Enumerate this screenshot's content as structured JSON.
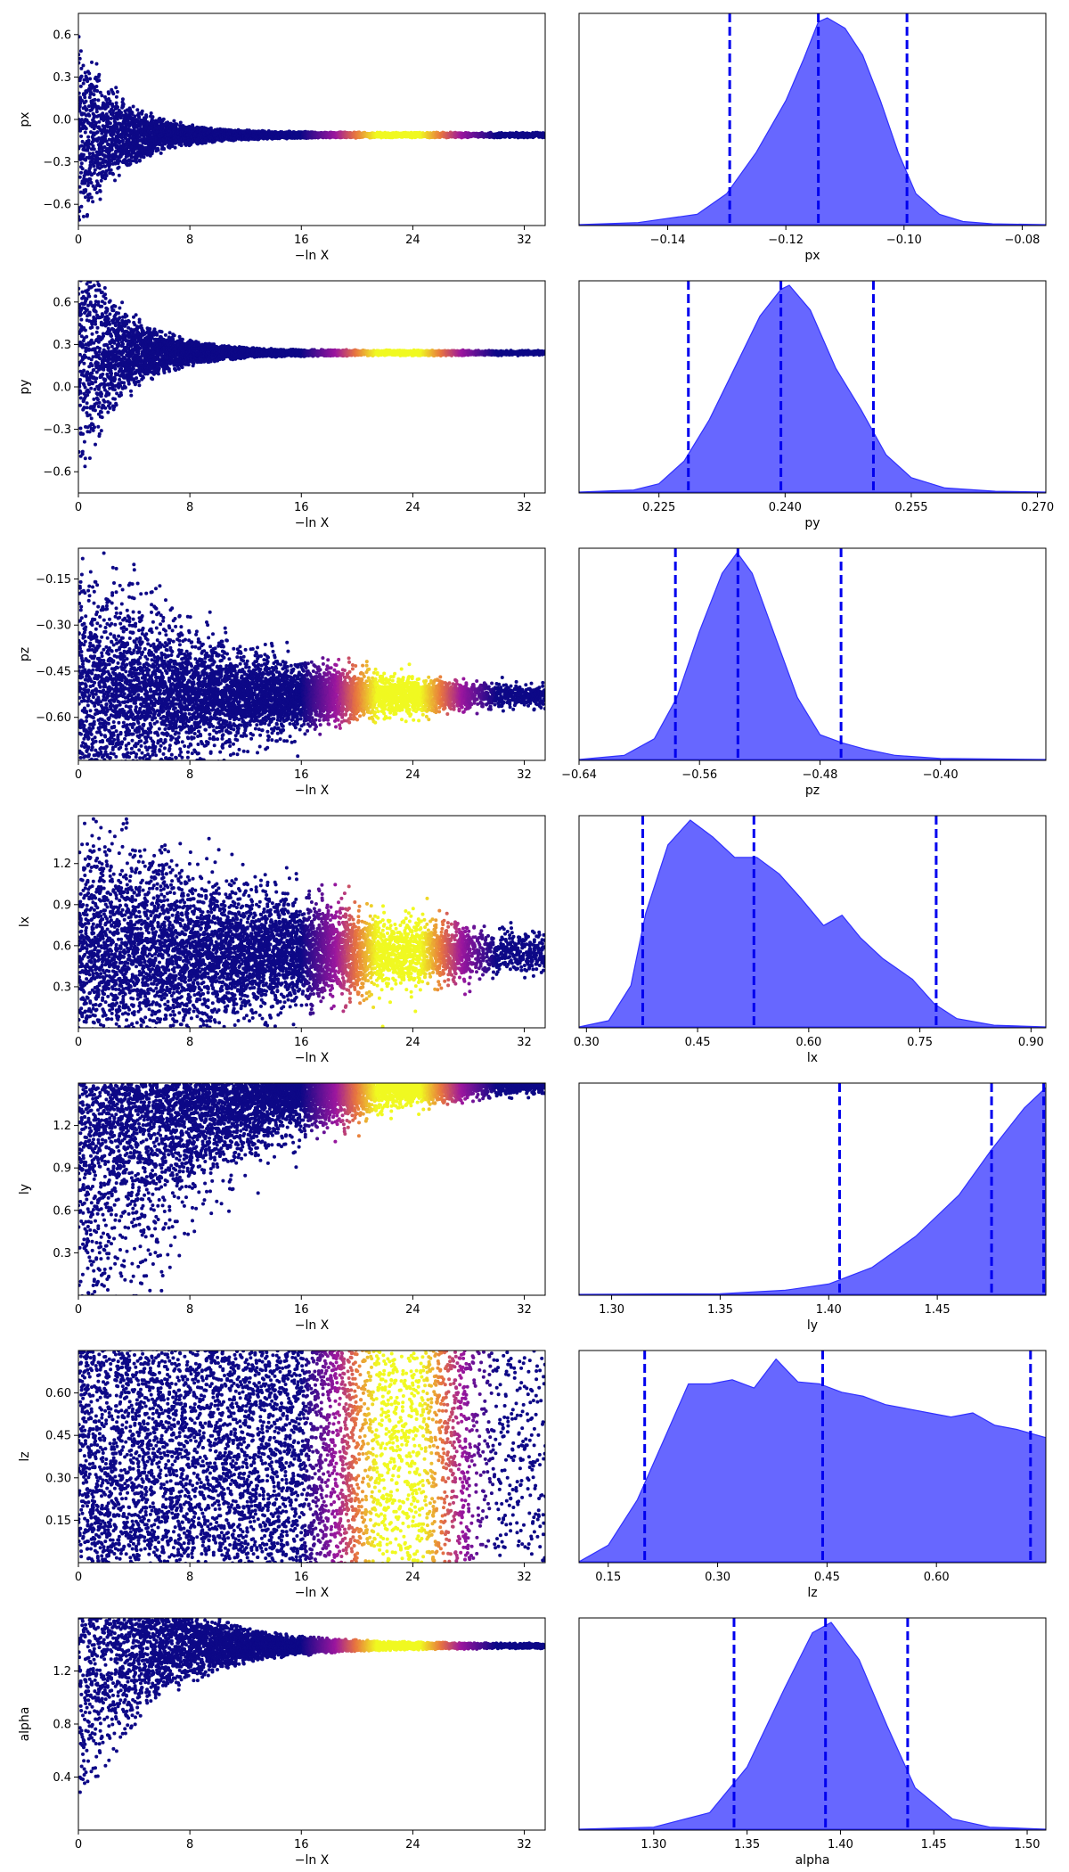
{
  "colors": {
    "trace_low": "#0d0887",
    "trace_mid": "#9c179e",
    "trace_high": "#f0f921",
    "posterior_fill": "#5a5aff",
    "posterior_edge": "#3030ff",
    "quantile_line": "#0000ee",
    "axis": "#000000"
  },
  "chart_data": [
    {
      "type": "scatter",
      "param": "px",
      "ylabel": "px",
      "xlabel": "−ln X",
      "xlim": [
        0,
        33.5
      ],
      "ylim": [
        -0.75,
        0.75
      ],
      "xticks": [
        0,
        8,
        16,
        24,
        32
      ],
      "xtick_labels": [
        "0",
        "8",
        "16",
        "24",
        "32"
      ],
      "yticks": [
        0.6,
        0.3,
        0.0,
        -0.3,
        -0.6
      ],
      "ytick_labels": [
        "0.6",
        "0.3",
        "0.0",
        "−0.3",
        "−0.6"
      ],
      "center": -0.11,
      "spread_at_zero": 0.75,
      "decay_rate": 0.32,
      "peak_lnx": 23,
      "points_per_bin": 16
    },
    {
      "type": "area",
      "param": "px",
      "xlabel": "px",
      "xlim": [
        -0.155,
        -0.076
      ],
      "xticks": [
        -0.14,
        -0.12,
        -0.1,
        -0.08
      ],
      "xtick_labels": [
        "−0.14",
        "−0.12",
        "−0.10",
        "−0.08"
      ],
      "quantiles": [
        -0.1295,
        -0.1145,
        -0.0995
      ],
      "density": [
        [
          -0.155,
          0
        ],
        [
          -0.145,
          0.01
        ],
        [
          -0.135,
          0.05
        ],
        [
          -0.13,
          0.15
        ],
        [
          -0.125,
          0.35
        ],
        [
          -0.12,
          0.6
        ],
        [
          -0.117,
          0.8
        ],
        [
          -0.1145,
          0.98
        ],
        [
          -0.113,
          1.0
        ],
        [
          -0.11,
          0.95
        ],
        [
          -0.107,
          0.82
        ],
        [
          -0.104,
          0.6
        ],
        [
          -0.101,
          0.35
        ],
        [
          -0.098,
          0.15
        ],
        [
          -0.094,
          0.05
        ],
        [
          -0.09,
          0.015
        ],
        [
          -0.085,
          0.004
        ],
        [
          -0.076,
          0
        ]
      ]
    },
    {
      "type": "scatter",
      "param": "py",
      "ylabel": "py",
      "xlabel": "−ln X",
      "xlim": [
        0,
        33.5
      ],
      "ylim": [
        -0.75,
        0.75
      ],
      "xticks": [
        0,
        8,
        16,
        24,
        32
      ],
      "xtick_labels": [
        "0",
        "8",
        "16",
        "24",
        "32"
      ],
      "yticks": [
        0.6,
        0.3,
        0.0,
        -0.3,
        -0.6
      ],
      "ytick_labels": [
        "0.6",
        "0.3",
        "0.0",
        "−0.3",
        "−0.6"
      ],
      "center": 0.24,
      "spread_at_zero": 1.0,
      "decay_rate": 0.32,
      "peak_lnx": 23,
      "points_per_bin": 16
    },
    {
      "type": "area",
      "param": "py",
      "xlabel": "py",
      "xlim": [
        0.2155,
        0.271
      ],
      "xticks": [
        0.225,
        0.24,
        0.255,
        0.27
      ],
      "xtick_labels": [
        "0.225",
        "0.240",
        "0.255",
        "0.270"
      ],
      "quantiles": [
        0.2285,
        0.2395,
        0.2505
      ],
      "density": [
        [
          0.2155,
          0
        ],
        [
          0.222,
          0.01
        ],
        [
          0.225,
          0.04
        ],
        [
          0.228,
          0.15
        ],
        [
          0.231,
          0.35
        ],
        [
          0.234,
          0.6
        ],
        [
          0.237,
          0.85
        ],
        [
          0.2395,
          0.98
        ],
        [
          0.2405,
          1.0
        ],
        [
          0.243,
          0.88
        ],
        [
          0.246,
          0.6
        ],
        [
          0.249,
          0.4
        ],
        [
          0.252,
          0.18
        ],
        [
          0.255,
          0.07
        ],
        [
          0.259,
          0.02
        ],
        [
          0.265,
          0.004
        ],
        [
          0.271,
          0
        ]
      ]
    },
    {
      "type": "scatter",
      "param": "pz",
      "ylabel": "pz",
      "xlabel": "−ln X",
      "xlim": [
        0,
        33.5
      ],
      "ylim": [
        -0.74,
        -0.05
      ],
      "xticks": [
        0,
        8,
        16,
        24,
        32
      ],
      "xtick_labels": [
        "0",
        "8",
        "16",
        "24",
        "32"
      ],
      "yticks": [
        -0.15,
        -0.3,
        -0.45,
        -0.6
      ],
      "ytick_labels": [
        "−0.15",
        "−0.30",
        "−0.45",
        "−0.60"
      ],
      "center": -0.53,
      "spread_at_zero": 0.45,
      "decay_rate": 0.1,
      "peak_lnx": 23,
      "points_per_bin": 20
    },
    {
      "type": "area",
      "param": "pz",
      "xlabel": "pz",
      "xlim": [
        -0.64,
        -0.33
      ],
      "xticks": [
        -0.64,
        -0.56,
        -0.48,
        -0.4
      ],
      "xtick_labels": [
        "−0.64",
        "−0.56",
        "−0.48",
        "−0.40"
      ],
      "quantiles": [
        -0.576,
        -0.5345,
        -0.466
      ],
      "density": [
        [
          -0.64,
          0
        ],
        [
          -0.61,
          0.02
        ],
        [
          -0.59,
          0.1
        ],
        [
          -0.575,
          0.3
        ],
        [
          -0.56,
          0.62
        ],
        [
          -0.545,
          0.9
        ],
        [
          -0.535,
          1.0
        ],
        [
          -0.525,
          0.9
        ],
        [
          -0.51,
          0.6
        ],
        [
          -0.495,
          0.3
        ],
        [
          -0.48,
          0.12
        ],
        [
          -0.465,
          0.08
        ],
        [
          -0.45,
          0.05
        ],
        [
          -0.43,
          0.02
        ],
        [
          -0.4,
          0.005
        ],
        [
          -0.33,
          0
        ]
      ]
    },
    {
      "type": "scatter",
      "param": "lx",
      "ylabel": "lx",
      "xlabel": "−ln X",
      "xlim": [
        0,
        33.5
      ],
      "ylim": [
        0.0,
        1.55
      ],
      "xticks": [
        0,
        8,
        16,
        24,
        32
      ],
      "xtick_labels": [
        "0",
        "8",
        "16",
        "24",
        "32"
      ],
      "yticks": [
        1.2,
        0.9,
        0.6,
        0.3
      ],
      "ytick_labels": [
        "1.2",
        "0.9",
        "0.6",
        "0.3"
      ],
      "center": 0.55,
      "spread_at_zero": 1.0,
      "decay_rate": 0.06,
      "peak_lnx": 23,
      "points_per_bin": 20
    },
    {
      "type": "area",
      "param": "lx",
      "xlabel": "lx",
      "xlim": [
        0.29,
        0.92
      ],
      "xticks": [
        0.3,
        0.45,
        0.6,
        0.75,
        0.9
      ],
      "xtick_labels": [
        "0.30",
        "0.45",
        "0.60",
        "0.75",
        "0.90"
      ],
      "quantiles": [
        0.376,
        0.526,
        0.772
      ],
      "density": [
        [
          0.29,
          0
        ],
        [
          0.33,
          0.03
        ],
        [
          0.36,
          0.2
        ],
        [
          0.38,
          0.55
        ],
        [
          0.41,
          0.88
        ],
        [
          0.44,
          1.0
        ],
        [
          0.47,
          0.92
        ],
        [
          0.5,
          0.82
        ],
        [
          0.53,
          0.82
        ],
        [
          0.56,
          0.74
        ],
        [
          0.59,
          0.62
        ],
        [
          0.62,
          0.49
        ],
        [
          0.645,
          0.54
        ],
        [
          0.67,
          0.43
        ],
        [
          0.7,
          0.33
        ],
        [
          0.74,
          0.23
        ],
        [
          0.77,
          0.11
        ],
        [
          0.8,
          0.04
        ],
        [
          0.85,
          0.008
        ],
        [
          0.92,
          0
        ]
      ]
    },
    {
      "type": "scatter",
      "param": "ly",
      "ylabel": "ly",
      "xlabel": "−ln X",
      "xlim": [
        0,
        33.5
      ],
      "ylim": [
        0.0,
        1.5
      ],
      "xticks": [
        0,
        8,
        16,
        24,
        32
      ],
      "xtick_labels": [
        "0",
        "8",
        "16",
        "24",
        "32"
      ],
      "yticks": [
        1.2,
        0.9,
        0.6,
        0.3
      ],
      "ytick_labels": [
        "1.2",
        "0.9",
        "0.6",
        "0.3"
      ],
      "center": 1.5,
      "spread_at_zero": 1.4,
      "decay_rate": 0.12,
      "peak_lnx": 23,
      "points_per_bin": 16
    },
    {
      "type": "area",
      "param": "ly",
      "xlabel": "ly",
      "xlim": [
        1.285,
        1.5
      ],
      "xticks": [
        1.3,
        1.35,
        1.4,
        1.45
      ],
      "xtick_labels": [
        "1.30",
        "1.35",
        "1.40",
        "1.45"
      ],
      "quantiles": [
        1.405,
        1.475,
        1.499
      ],
      "density": [
        [
          1.285,
          0
        ],
        [
          1.35,
          0.003
        ],
        [
          1.38,
          0.02
        ],
        [
          1.4,
          0.05
        ],
        [
          1.42,
          0.13
        ],
        [
          1.44,
          0.28
        ],
        [
          1.46,
          0.48
        ],
        [
          1.475,
          0.7
        ],
        [
          1.49,
          0.9
        ],
        [
          1.5,
          1.0
        ]
      ]
    },
    {
      "type": "scatter",
      "param": "lz",
      "ylabel": "lz",
      "xlabel": "−ln X",
      "xlim": [
        0,
        33.5
      ],
      "ylim": [
        0.0,
        0.75
      ],
      "xticks": [
        0,
        8,
        16,
        24,
        32
      ],
      "xtick_labels": [
        "0",
        "8",
        "16",
        "24",
        "32"
      ],
      "yticks": [
        0.6,
        0.45,
        0.3,
        0.15
      ],
      "ytick_labels": [
        "0.60",
        "0.45",
        "0.30",
        "0.15"
      ],
      "center": 0.4,
      "spread_at_zero": 0.75,
      "decay_rate": 0.0,
      "peak_lnx": 23,
      "points_per_bin": 22
    },
    {
      "type": "area",
      "param": "lz",
      "xlabel": "lz",
      "xlim": [
        0.11,
        0.75
      ],
      "xticks": [
        0.15,
        0.3,
        0.45,
        0.6
      ],
      "xtick_labels": [
        "0.15",
        "0.30",
        "0.45",
        "0.60"
      ],
      "quantiles": [
        0.2,
        0.444,
        0.729
      ],
      "density": [
        [
          0.11,
          0
        ],
        [
          0.15,
          0.08
        ],
        [
          0.19,
          0.3
        ],
        [
          0.23,
          0.62
        ],
        [
          0.26,
          0.86
        ],
        [
          0.29,
          0.86
        ],
        [
          0.32,
          0.88
        ],
        [
          0.35,
          0.84
        ],
        [
          0.38,
          0.98
        ],
        [
          0.41,
          0.87
        ],
        [
          0.44,
          0.86
        ],
        [
          0.47,
          0.82
        ],
        [
          0.5,
          0.8
        ],
        [
          0.53,
          0.76
        ],
        [
          0.56,
          0.74
        ],
        [
          0.59,
          0.72
        ],
        [
          0.62,
          0.7
        ],
        [
          0.65,
          0.72
        ],
        [
          0.68,
          0.66
        ],
        [
          0.71,
          0.64
        ],
        [
          0.75,
          0.6
        ]
      ]
    },
    {
      "type": "scatter",
      "param": "alpha",
      "ylabel": "alpha",
      "xlabel": "−ln X",
      "xlim": [
        0,
        33.5
      ],
      "ylim": [
        0.0,
        1.6
      ],
      "xticks": [
        0,
        8,
        16,
        24,
        32
      ],
      "xtick_labels": [
        "0",
        "8",
        "16",
        "24",
        "32"
      ],
      "yticks": [
        1.2,
        0.8,
        0.4
      ],
      "ytick_labels": [
        "1.2",
        "0.8",
        "0.4"
      ],
      "center": 1.39,
      "spread_at_zero": 1.4,
      "decay_rate": 0.2,
      "peak_lnx": 23,
      "points_per_bin": 16
    },
    {
      "type": "area",
      "param": "alpha",
      "xlabel": "alpha",
      "xlim": [
        1.26,
        1.51
      ],
      "xticks": [
        1.3,
        1.35,
        1.4,
        1.45,
        1.5
      ],
      "xtick_labels": [
        "1.30",
        "1.35",
        "1.40",
        "1.45",
        "1.50"
      ],
      "quantiles": [
        1.343,
        1.392,
        1.436
      ],
      "density": [
        [
          1.26,
          0
        ],
        [
          1.3,
          0.01
        ],
        [
          1.33,
          0.08
        ],
        [
          1.35,
          0.3
        ],
        [
          1.37,
          0.68
        ],
        [
          1.385,
          0.95
        ],
        [
          1.395,
          1.0
        ],
        [
          1.41,
          0.82
        ],
        [
          1.425,
          0.5
        ],
        [
          1.44,
          0.2
        ],
        [
          1.46,
          0.05
        ],
        [
          1.48,
          0.01
        ],
        [
          1.51,
          0
        ]
      ]
    }
  ]
}
